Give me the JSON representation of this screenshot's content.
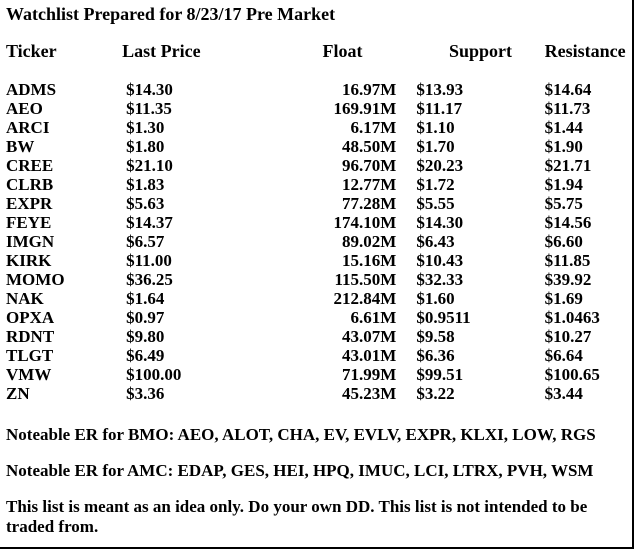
{
  "title": "Watchlist Prepared for 8/23/17 Pre Market",
  "columns": {
    "ticker": "Ticker",
    "last_price": "Last Price",
    "float": "Float",
    "support": "Support",
    "resistance": "Resistance"
  },
  "rows": [
    {
      "ticker": "ADMS",
      "last_price": "$14.30",
      "float": "16.97M",
      "support": "$13.93",
      "resistance": "$14.64"
    },
    {
      "ticker": "AEO",
      "last_price": "$11.35",
      "float": "169.91M",
      "support": "$11.17",
      "resistance": "$11.73"
    },
    {
      "ticker": "ARCI",
      "last_price": "$1.30",
      "float": "6.17M",
      "support": "$1.10",
      "resistance": "$1.44"
    },
    {
      "ticker": "BW",
      "last_price": "$1.80",
      "float": "48.50M",
      "support": "$1.70",
      "resistance": "$1.90"
    },
    {
      "ticker": "CREE",
      "last_price": "$21.10",
      "float": "96.70M",
      "support": "$20.23",
      "resistance": "$21.71"
    },
    {
      "ticker": "CLRB",
      "last_price": "$1.83",
      "float": "12.77M",
      "support": "$1.72",
      "resistance": "$1.94"
    },
    {
      "ticker": "EXPR",
      "last_price": "$5.63",
      "float": "77.28M",
      "support": "$5.55",
      "resistance": "$5.75"
    },
    {
      "ticker": "FEYE",
      "last_price": "$14.37",
      "float": "174.10M",
      "support": "$14.30",
      "resistance": "$14.56"
    },
    {
      "ticker": "IMGN",
      "last_price": "$6.57",
      "float": "89.02M",
      "support": "$6.43",
      "resistance": "$6.60"
    },
    {
      "ticker": "KIRK",
      "last_price": "$11.00",
      "float": "15.16M",
      "support": "$10.43",
      "resistance": "$11.85"
    },
    {
      "ticker": "MOMO",
      "last_price": "$36.25",
      "float": "115.50M",
      "support": "$32.33",
      "resistance": "$39.92"
    },
    {
      "ticker": "NAK",
      "last_price": "$1.64",
      "float": "212.84M",
      "support": "$1.60",
      "resistance": "$1.69"
    },
    {
      "ticker": "OPXA",
      "last_price": "$0.97",
      "float": "6.61M",
      "support": "$0.9511",
      "resistance": "$1.0463"
    },
    {
      "ticker": "RDNT",
      "last_price": "$9.80",
      "float": "43.07M",
      "support": "$9.58",
      "resistance": "$10.27"
    },
    {
      "ticker": "TLGT",
      "last_price": "$6.49",
      "float": "43.01M",
      "support": "$6.36",
      "resistance": "$6.64"
    },
    {
      "ticker": "VMW",
      "last_price": "$100.00",
      "float": "71.99M",
      "support": "$99.51",
      "resistance": "$100.65"
    },
    {
      "ticker": "ZN",
      "last_price": "$3.36",
      "float": "45.23M",
      "support": "$3.22",
      "resistance": "$3.44"
    }
  ],
  "notes": {
    "bmo": "Noteable ER for BMO: AEO, ALOT, CHA, EV, EVLV, EXPR, KLXI, LOW, RGS",
    "amc": "Noteable ER for AMC: EDAP, GES, HEI, HPQ, IMUC, LCI, LTRX, PVH, WSM"
  },
  "disclaimer": "This list is meant as an idea only. Do your own DD. This list is not intended to be traded from."
}
